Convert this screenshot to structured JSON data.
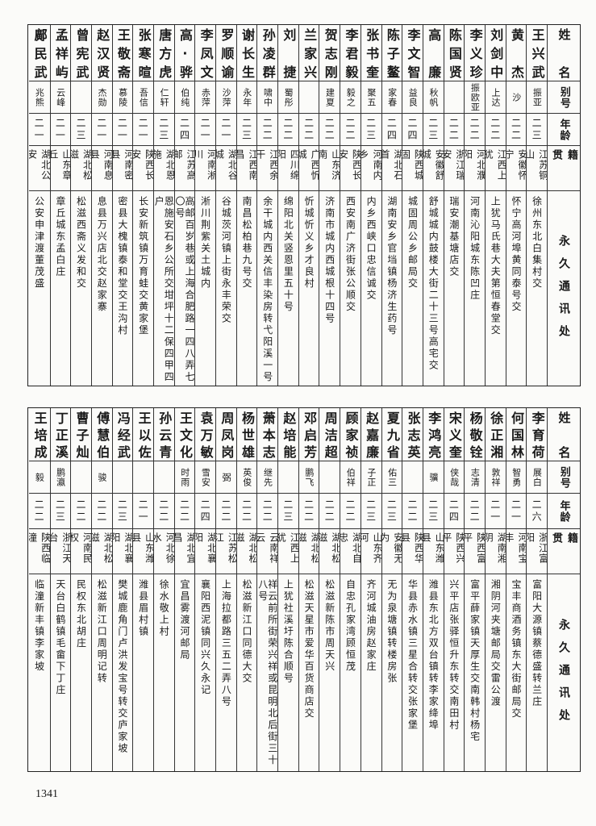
{
  "headers": {
    "name": "姓名",
    "alias": "别号",
    "age": "年龄",
    "native": "籍贯",
    "address": "永久通讯处"
  },
  "top": {
    "rows": [
      {
        "name": "王兴武",
        "alias": "振亚",
        "age": "二三",
        "native": "江苏铜山",
        "address": "徐州东北白集村交"
      },
      {
        "name": "黄杰",
        "alias": "沙",
        "age": "二二",
        "native": "安徽怀宁",
        "address": "怀宁高河埠黄同泰号交"
      },
      {
        "name": "刘剑中",
        "alias": "上达",
        "age": "二二",
        "native": "江西上犹",
        "address": "上犹马氏巷大夫第恒春堂交"
      },
      {
        "name": "李义珍",
        "alias": "振欧亚",
        "age": "二二",
        "native": "河北濮阳",
        "address": "河南沁阳城东陈凹庄"
      },
      {
        "name": "陈国贤",
        "alias": "",
        "age": "二二",
        "native": "浙江瑞安",
        "address": "瑞安潮基塘店交"
      },
      {
        "name": "高廉",
        "alias": "秋帆",
        "age": "二三",
        "native": "安徽舒城",
        "address": "舒城城内鼓楼大街二十三号高宅交"
      },
      {
        "name": "李文智",
        "alias": "益良",
        "age": "二四",
        "native": "陕西城固",
        "address": "城固周公乡邮局交"
      },
      {
        "name": "陈子鳌",
        "alias": "家春",
        "age": "二四",
        "native": "湖北石首",
        "address": "湖南安乡官垱镇杨济生药号"
      },
      {
        "name": "张书奎",
        "alias": "聚五",
        "age": "二三",
        "native": "河南内乡",
        "address": "内乡西峡口忠信诚交"
      },
      {
        "name": "李君毅",
        "alias": "毅之",
        "age": "二二",
        "native": "陕西长安",
        "address": "西安南广济街张公顺交"
      },
      {
        "name": "贺志刚",
        "alias": "建夏",
        "age": "二二",
        "native": "山东济南",
        "address": "济南市城内西城根十四号"
      },
      {
        "name": "兰家兴",
        "alias": "",
        "age": "二二",
        "native": "广西忻城",
        "address": "忻城忻义乡才良村"
      },
      {
        "name": "刘捷",
        "alias": "蜀彤",
        "age": "二二",
        "native": "四川绵阳",
        "address": "绵阳北关竖恩里五十号"
      },
      {
        "name": "孙凌群",
        "alias": "啸中",
        "age": "二二",
        "native": "江西余干",
        "address": "余干城内西关信丰染房转弋阳溪一号"
      },
      {
        "name": "谢长生",
        "alias": "永年",
        "age": "二三",
        "native": "江西南昌",
        "address": "南昌松柏巷九号交"
      },
      {
        "name": "罗顺谕",
        "alias": "沙萍",
        "age": "二一",
        "native": "湖北谷城",
        "address": "谷城茨河镇上街永丰荣交"
      },
      {
        "name": "李凤文",
        "alias": "赤萍",
        "age": "二一",
        "native": "河南淅川",
        "address": "淅川荆紫关土城内"
      },
      {
        "name": "高·骅",
        "alias": "伯纯",
        "age": "二四",
        "native": "江苏高邮",
        "address": "高邮百岁巷或上海合肥路一四八弄七〇号"
      },
      {
        "name": "唐方虎",
        "alias": "仁轩",
        "age": "二三",
        "native": "湖北恩施",
        "address": "恩施安石乡公所交坩坪十二保四甲四户"
      },
      {
        "name": "张寒暄",
        "alias": "吾信",
        "age": "二一",
        "native": "陕西长安",
        "address": "长安新筑镇万育蛙交黄家堡"
      },
      {
        "name": "王敬斋",
        "alias": "慕陵",
        "age": "二一",
        "native": "河南密县",
        "address": "密县大槐镇泰和堂交王沟村"
      },
      {
        "name": "赵汉贤",
        "alias": "杰勋",
        "age": "二一",
        "native": "河南息县",
        "address": "息县万兴店北交赵家寨"
      },
      {
        "name": "曾宪武",
        "alias": "",
        "age": "二三",
        "native": "湖北松滋",
        "address": "松滋西斋义发和交"
      },
      {
        "name": "孟祥屿",
        "alias": "云峰",
        "age": "二一",
        "native": "山东章丘",
        "address": "章丘城东孟白庄"
      },
      {
        "name": "鄺民武",
        "alias": "兆熊",
        "age": "二一",
        "native": "湖北公安",
        "address": "公安申津渡董茂盛"
      }
    ]
  },
  "bottom": {
    "rows": [
      {
        "name": "李育荷",
        "alias": "展白",
        "age": "二六",
        "native": "浙江富阳",
        "address": "富阳大源镇蔡德盛转兰庄"
      },
      {
        "name": "何国林",
        "alias": "智勇",
        "age": "二一",
        "native": "河南宝丰",
        "address": "宝丰商酒务镇东大街邮局交"
      },
      {
        "name": "徐正湘",
        "alias": "敦祥",
        "age": "二一",
        "native": "湖南湘阴",
        "address": "湘阴河夹塘邮局交雷公渡"
      },
      {
        "name": "杨敬铨",
        "alias": "志清",
        "age": "二二",
        "native": "陕西富平",
        "address": "富平薛家镇天厚生交南韩村杨宅"
      },
      {
        "name": "宋义奎",
        "alias": "侠哉",
        "age": "二四",
        "native": "陕西兴平",
        "address": "兴平店张驿恒升东转交南田村"
      },
      {
        "name": "李鸿亮",
        "alias": "骥",
        "age": "二三",
        "native": "山东潍县",
        "address": "潍县东北方双台镇转李家绛埠"
      },
      {
        "name": "张志英",
        "alias": "",
        "age": "二二",
        "native": "陕西华县",
        "address": "华县赤水镇三星合转交张家堡"
      },
      {
        "name": "夏九省",
        "alias": "佑三",
        "age": "二三",
        "native": "安徽无为",
        "address": "无为泉塘镇转楼房张"
      },
      {
        "name": "赵嘉廉",
        "alias": "子正",
        "age": "二三",
        "native": "山东齐河",
        "address": "齐河城油房赵家庄"
      },
      {
        "name": "顾家祯",
        "alias": "伯祥",
        "age": "二二",
        "native": "湖北自忠",
        "address": "自忠孔家湾顾恒茂"
      },
      {
        "name": "周洁超",
        "alias": "",
        "age": "二二",
        "native": "湖北松滋",
        "address": "松滋新陈市周天兴"
      },
      {
        "name": "邓启芳",
        "alias": "鹏飞",
        "age": "二二",
        "native": "湖北松滋",
        "address": "松滋天星市爱华百货商店交"
      },
      {
        "name": "赵培能",
        "alias": "",
        "age": "二三",
        "native": "江西上犹",
        "address": "上犹社溪圩陈合顺号"
      },
      {
        "name": "萧本志",
        "alias": "继先",
        "age": "二二",
        "native": "云南祥云",
        "address": "祥云前所街荣兴祥或昆明北后街三十八号"
      },
      {
        "name": "杨世雄",
        "alias": "英俊",
        "age": "二二",
        "native": "湖北松滋",
        "address": "松滋新江口同德大交"
      },
      {
        "name": "周凤岗",
        "alias": "弼",
        "age": "二二",
        "native": "江苏松江",
        "address": "上海拉都路三五二弄八号"
      },
      {
        "name": "袁万敏",
        "alias": "雪安",
        "age": "二四",
        "native": "湖北襄阳",
        "address": "襄阳西泥镇同兴久永记"
      },
      {
        "name": "王文化",
        "alias": "时雨",
        "age": "二二",
        "native": "湖北宜昌",
        "address": "宜昌雾渡河邮局"
      },
      {
        "name": "孙云青",
        "alias": "",
        "age": "二二",
        "native": "河北徐水",
        "address": "徐水敬上村"
      },
      {
        "name": "王以佐",
        "alias": "",
        "age": "二一",
        "native": "山东潍县",
        "address": "潍县眉村镇"
      },
      {
        "name": "冯经武",
        "alias": "",
        "age": "二三",
        "native": "湖北襄阳",
        "address": "樊城鹿角门卢洪发宝号转交庐家坡"
      },
      {
        "name": "傅慧伯",
        "alias": "骏",
        "age": "二二",
        "native": "湖北松滋",
        "address": "松滋新江口周明记转"
      },
      {
        "name": "曹子灿",
        "alias": "",
        "age": "二二",
        "native": "河南民权",
        "address": "民权东北胡庄"
      },
      {
        "name": "丁正溪",
        "alias": "鹏瀛",
        "age": "二三",
        "native": "浙江天台",
        "address": "天台白鹤镇毛畲下丁庄"
      },
      {
        "name": "王培成",
        "alias": "毅",
        "age": "二二",
        "native": "陕西临潼",
        "address": "临潼新丰镇李家坡"
      }
    ]
  },
  "page_number": "1341"
}
